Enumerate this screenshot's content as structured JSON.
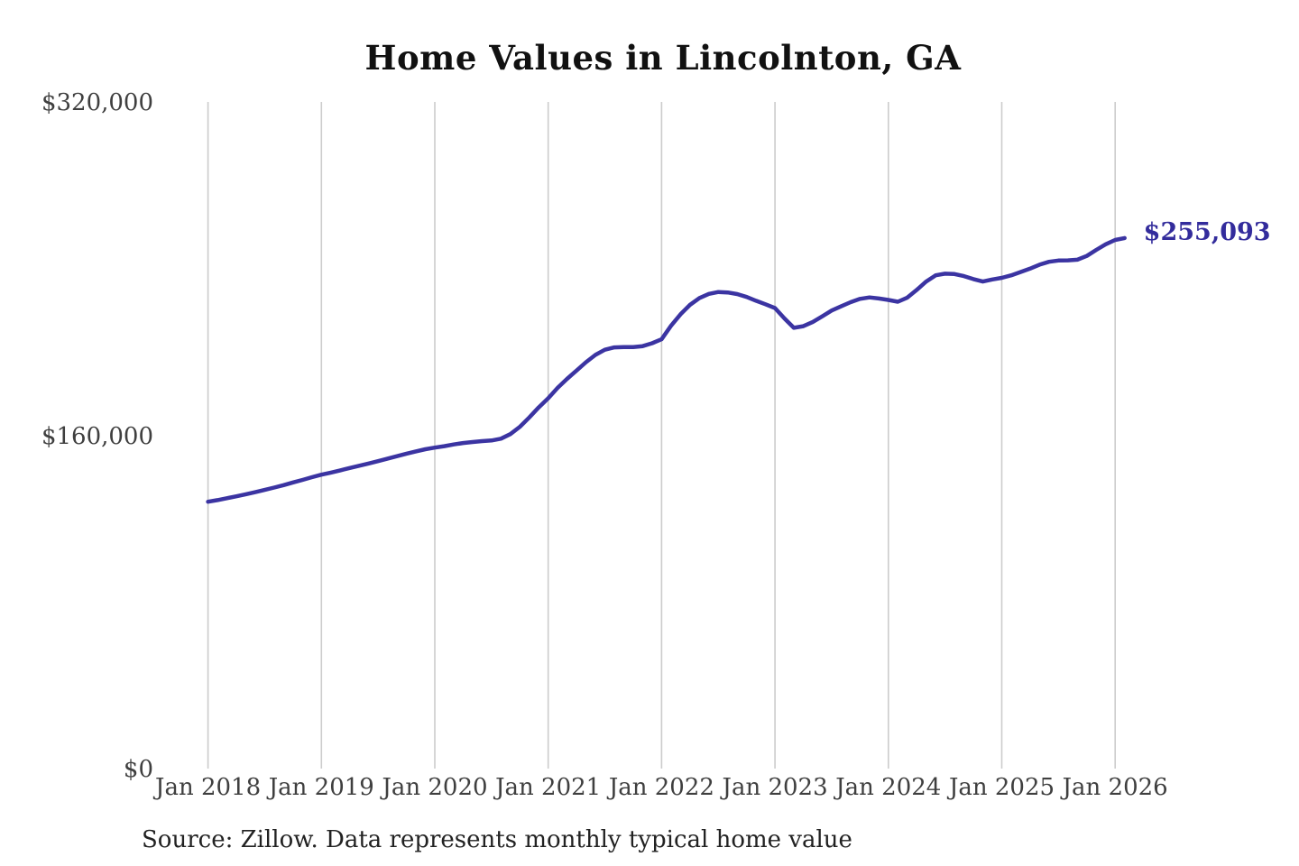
{
  "page": {
    "background": "#ffffff"
  },
  "chart": {
    "title": "Home Values in Lincolnton, GA",
    "source_note": "Source: Zillow. Data represents monthly typical home value",
    "end_label": "$255,093",
    "colors": {
      "line": "#3b34a2",
      "end_label": "#332c9c",
      "gridline": "#cccccc",
      "title": "#111111",
      "axis_label": "#3f3f3f",
      "source": "#222222"
    }
  },
  "chart_data": {
    "type": "line",
    "title": "Home Values in Lincolnton, GA",
    "xlabel": "",
    "ylabel": "",
    "ylim": [
      0,
      320000
    ],
    "y_ticks": [
      0,
      160000,
      320000
    ],
    "y_tick_labels": [
      "$0",
      "$160,000",
      "$320,000"
    ],
    "x_tick_labels": [
      "Jan 2018",
      "Jan 2019",
      "Jan 2020",
      "Jan 2021",
      "Jan 2022",
      "Jan 2023",
      "Jan 2024",
      "Jan 2025",
      "Jan 2026"
    ],
    "x_start": "Jan 2018",
    "x_end": "Feb 2026",
    "frequency": "monthly",
    "grid": "vertical-only",
    "legend": "none",
    "final_value": 255093,
    "final_value_label": "$255,093",
    "series": [
      {
        "name": "Monthly typical home value",
        "values": [
          128500,
          129300,
          130200,
          131100,
          132100,
          133100,
          134200,
          135300,
          136500,
          137800,
          139000,
          140300,
          141500,
          142500,
          143600,
          144700,
          145800,
          146900,
          148000,
          149200,
          150400,
          151600,
          152700,
          153700,
          154500,
          155200,
          156000,
          156700,
          157200,
          157600,
          157900,
          158800,
          161000,
          164500,
          169000,
          173800,
          178200,
          183200,
          187500,
          191500,
          195500,
          199000,
          201500,
          202600,
          202800,
          202800,
          203200,
          204600,
          206500,
          213000,
          218500,
          223000,
          226300,
          228300,
          229200,
          229000,
          228200,
          226800,
          225000,
          223300,
          221500,
          216500,
          212000,
          212800,
          214800,
          217500,
          220300,
          222300,
          224300,
          225900,
          226600,
          226100,
          225400,
          224500,
          226500,
          230200,
          234200,
          237200,
          238000,
          237800,
          236800,
          235400,
          234200,
          235200,
          236000,
          237200,
          238800,
          240400,
          242300,
          243700,
          244300,
          244400,
          244700,
          246500,
          249400,
          252100,
          254200,
          255093
        ]
      }
    ]
  }
}
